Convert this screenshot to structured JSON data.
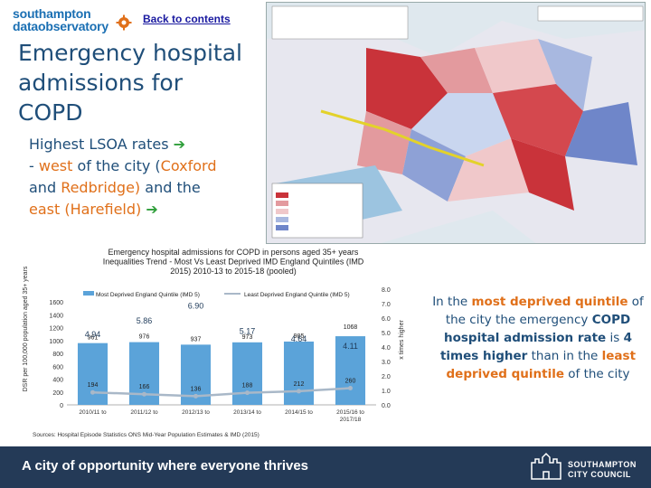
{
  "logo": {
    "line1": "southampton",
    "line2": "dataobservatory"
  },
  "nav": {
    "back_label": "Back to contents"
  },
  "title": {
    "line1": "Emergency hospital",
    "line2": "admissions for",
    "line3": "COPD"
  },
  "highlights": {
    "t1": "Highest LSOA rates",
    "t2": "- ",
    "t3": "west",
    "t4": " of the city (",
    "t5": "Coxford",
    "t6": " and ",
    "t7": "Redbridge)",
    "t8": " and the ",
    "t9": "east (Harefield)",
    "arrow": "➔"
  },
  "summary": {
    "s1": "In the ",
    "s2": "most deprived quintile",
    "s3": " of the city the emergency ",
    "s4": "COPD hospital admission rate",
    "s5": " is ",
    "s6": "4 times higher",
    "s7": " than in the ",
    "s8": "least deprived quintile",
    "s9": " of the city"
  },
  "colors": {
    "navy": "#243a57",
    "orange": "#e0701a",
    "green_arrow": "#2e9e3a",
    "bar": "#5ba3d9",
    "line": "#a9b8c8"
  },
  "footer": {
    "tagline": "A city of opportunity where everyone thrives",
    "council1": "SOUTHAMPTON",
    "council2": "CITY COUNCIL"
  },
  "chart_data": {
    "type": "bar",
    "title": "Emergency hospital admissions for COPD in persons aged 35+ years Inequalities Trend - Most Vs Least Deprived IMD England Quintiles (IMD 2015) 2010-13 to 2015-18 (pooled)",
    "title_lines": [
      "Emergency hospital admissions for COPD in persons aged 35+ years",
      "Inequalities Trend - Most Vs Least Deprived IMD England Quintiles (IMD",
      "2015) 2010-13 to 2015-18 (pooled)"
    ],
    "ylabel_left": "DSR per 100,000 population aged 35+ years",
    "ylabel_right": "x times higher",
    "categories": [
      "2010/11 to",
      "2011/12 to",
      "2012/13 to",
      "2013/14 to",
      "2014/15 to",
      "2015/16 to 2017/18"
    ],
    "series": [
      {
        "name": "Most Deprived England Quintile (IMD 5)",
        "values": [
          961,
          976,
          937,
          973,
          985,
          1068
        ]
      },
      {
        "name": "Least Deprived England Quintile (IMD 5)",
        "values": [
          194,
          166,
          136,
          188,
          212,
          260
        ]
      },
      {
        "name": "x times higher",
        "axis": "right",
        "values": [
          4.94,
          5.86,
          6.9,
          5.17,
          4.64,
          4.11
        ]
      }
    ],
    "ylim_left": [
      0,
      1800
    ],
    "ylim_right": [
      0,
      8.0
    ],
    "yticks_left": [
      "0",
      "200",
      "400",
      "600",
      "800",
      "1000",
      "1200",
      "1400",
      "1600"
    ],
    "yticks_right": [
      "0.0",
      "1.0",
      "2.0",
      "3.0",
      "4.0",
      "5.0",
      "6.0",
      "7.0",
      "8.0"
    ],
    "ratio_labels": [
      "4.94",
      "5.86",
      "6.90",
      "5.17",
      "4.64",
      "4.11"
    ],
    "source": "Sources: Hospital Episode Statistics ONS Mid-Year Population Estimates & IMD (2015)"
  }
}
